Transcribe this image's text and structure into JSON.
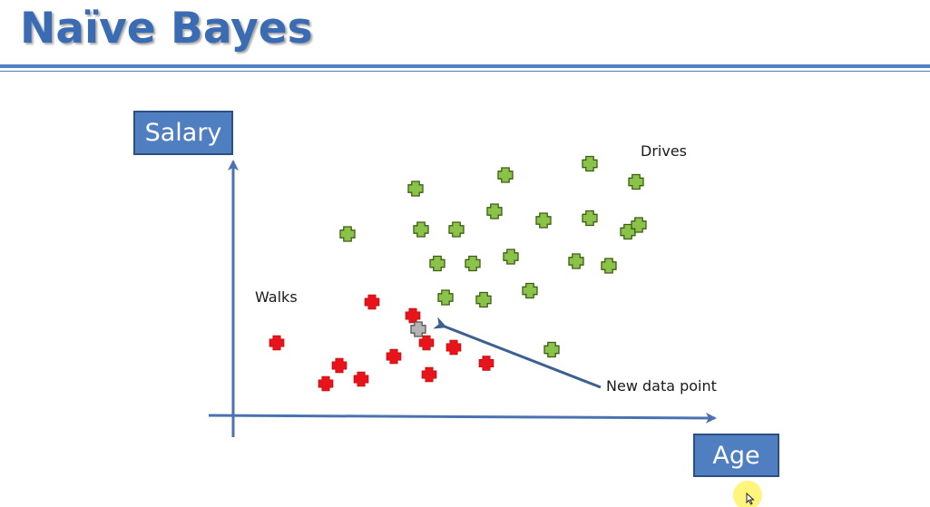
{
  "slide": {
    "title": "Naïve Bayes"
  },
  "axes": {
    "y_label": "Salary",
    "x_label": "Age"
  },
  "labels": {
    "walks": "Walks",
    "drives": "Drives",
    "new_point": "New data point"
  },
  "colors": {
    "title": "#3b6cb3",
    "axis": "#4a72b0",
    "walks_point": "#e8141b",
    "drives_point": "#8bc34a",
    "new_point": "#b4b4b4",
    "box_fill": "#4f7fc0"
  },
  "chart_data": {
    "type": "scatter",
    "xlabel": "Age",
    "ylabel": "Salary",
    "series": [
      {
        "name": "Walks",
        "points": [
          [
            1.6,
            3.2
          ],
          [
            3.4,
            1.4
          ],
          [
            3.9,
            2.2
          ],
          [
            4.7,
            1.6
          ],
          [
            5.1,
            5.0
          ],
          [
            5.9,
            2.6
          ],
          [
            6.6,
            4.4
          ],
          [
            7.1,
            3.2
          ],
          [
            7.2,
            1.8
          ],
          [
            8.1,
            3.0
          ],
          [
            9.3,
            2.3
          ]
        ]
      },
      {
        "name": "Drives",
        "points": [
          [
            4.2,
            8.0
          ],
          [
            6.7,
            10.0
          ],
          [
            6.9,
            8.2
          ],
          [
            7.5,
            6.7
          ],
          [
            7.8,
            5.2
          ],
          [
            8.2,
            8.2
          ],
          [
            8.8,
            6.7
          ],
          [
            9.2,
            5.1
          ],
          [
            9.6,
            9.0
          ],
          [
            10.0,
            10.6
          ],
          [
            10.2,
            7.0
          ],
          [
            10.9,
            5.5
          ],
          [
            11.4,
            8.6
          ],
          [
            11.7,
            2.9
          ],
          [
            12.6,
            6.8
          ],
          [
            13.1,
            8.7
          ],
          [
            13.1,
            11.1
          ],
          [
            13.8,
            6.6
          ],
          [
            14.5,
            8.1
          ],
          [
            14.8,
            10.3
          ],
          [
            14.9,
            8.4
          ]
        ]
      },
      {
        "name": "New data point",
        "points": [
          [
            6.8,
            3.8
          ]
        ]
      }
    ]
  }
}
